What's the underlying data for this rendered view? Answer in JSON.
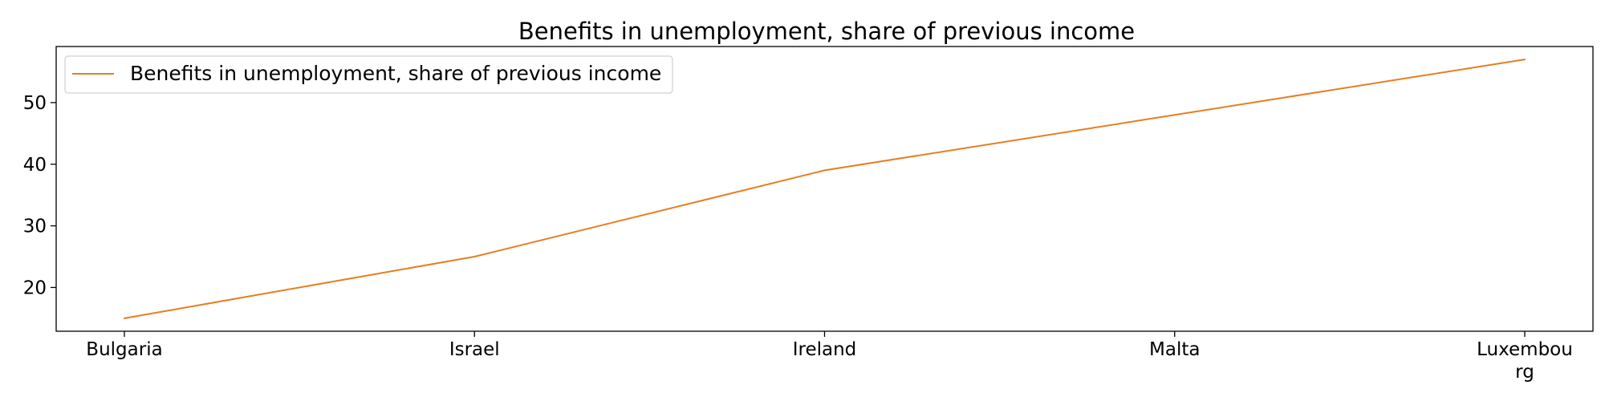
{
  "chart_data": {
    "type": "line",
    "title": "Benefits in unemployment, share of previous income",
    "xlabel": "",
    "ylabel": "",
    "categories": [
      "Bulgaria",
      "Israel",
      "Ireland",
      "Malta",
      "Luxembourg"
    ],
    "category_labels": [
      [
        "Bulgaria"
      ],
      [
        "Israel"
      ],
      [
        "Ireland"
      ],
      [
        "Malta"
      ],
      [
        "Luxembou",
        "rg"
      ]
    ],
    "series": [
      {
        "name": "Benefits in unemployment, share of previous income",
        "values": [
          15,
          25,
          39,
          48,
          57
        ],
        "color": "#e67e22"
      }
    ],
    "yticks": [
      20,
      30,
      40,
      50
    ],
    "ylim": [
      12.9,
      59.1
    ],
    "grid": false,
    "legend": "top-left"
  }
}
